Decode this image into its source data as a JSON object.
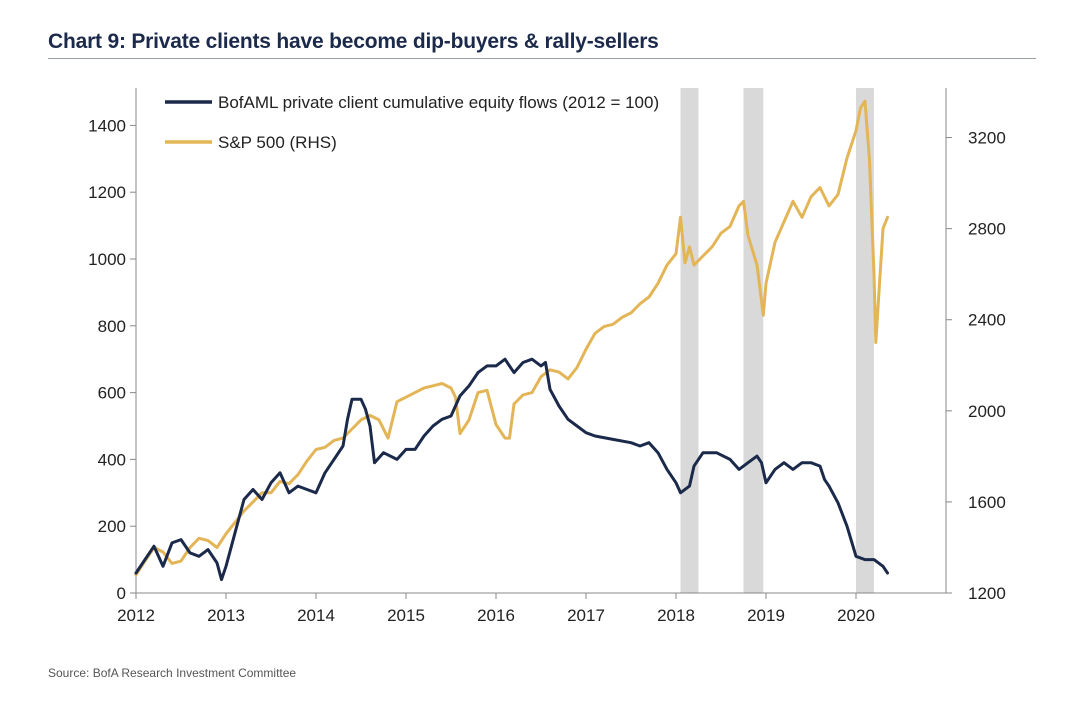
{
  "title": "Chart 9: Private clients have become dip-buyers & rally-sellers",
  "source": "Source: BofA Research Investment Committee",
  "colors": {
    "navy": "#1b2a4a",
    "gold": "#e3b557",
    "shade": "#d9d9d9",
    "axis": "#888888"
  },
  "chart_data": {
    "type": "line",
    "xlim": [
      2012,
      2021
    ],
    "x_ticks": [
      "2012",
      "2013",
      "2014",
      "2015",
      "2016",
      "2017",
      "2018",
      "2019",
      "2020"
    ],
    "y_left": {
      "lim": [
        0,
        1500
      ],
      "ticks": [
        "0",
        "200",
        "400",
        "600",
        "800",
        "1000",
        "1200",
        "1400"
      ]
    },
    "y_right": {
      "lim": [
        1200,
        3400
      ],
      "ticks": [
        "1200",
        "1600",
        "2000",
        "2400",
        "2800",
        "3200"
      ]
    },
    "shaded_periods": [
      [
        2018.05,
        2018.25
      ],
      [
        2018.75,
        2018.97
      ],
      [
        2020.0,
        2020.2
      ]
    ],
    "series": [
      {
        "name": "BofAML private client cumulative equity flows (2012 = 100)",
        "axis": "left",
        "color": "#1b2a4a",
        "points": [
          [
            2012.0,
            60
          ],
          [
            2012.1,
            100
          ],
          [
            2012.2,
            140
          ],
          [
            2012.3,
            80
          ],
          [
            2012.4,
            150
          ],
          [
            2012.5,
            160
          ],
          [
            2012.6,
            120
          ],
          [
            2012.7,
            110
          ],
          [
            2012.8,
            130
          ],
          [
            2012.9,
            90
          ],
          [
            2012.95,
            40
          ],
          [
            2013.0,
            80
          ],
          [
            2013.1,
            180
          ],
          [
            2013.2,
            280
          ],
          [
            2013.3,
            310
          ],
          [
            2013.4,
            280
          ],
          [
            2013.5,
            330
          ],
          [
            2013.6,
            360
          ],
          [
            2013.7,
            300
          ],
          [
            2013.8,
            320
          ],
          [
            2013.9,
            310
          ],
          [
            2014.0,
            300
          ],
          [
            2014.1,
            360
          ],
          [
            2014.2,
            400
          ],
          [
            2014.3,
            440
          ],
          [
            2014.35,
            520
          ],
          [
            2014.4,
            580
          ],
          [
            2014.5,
            580
          ],
          [
            2014.55,
            550
          ],
          [
            2014.6,
            500
          ],
          [
            2014.65,
            390
          ],
          [
            2014.75,
            420
          ],
          [
            2014.9,
            400
          ],
          [
            2015.0,
            430
          ],
          [
            2015.1,
            430
          ],
          [
            2015.2,
            470
          ],
          [
            2015.3,
            500
          ],
          [
            2015.4,
            520
          ],
          [
            2015.5,
            530
          ],
          [
            2015.6,
            590
          ],
          [
            2015.7,
            620
          ],
          [
            2015.8,
            660
          ],
          [
            2015.9,
            680
          ],
          [
            2016.0,
            680
          ],
          [
            2016.1,
            700
          ],
          [
            2016.2,
            660
          ],
          [
            2016.3,
            690
          ],
          [
            2016.4,
            700
          ],
          [
            2016.5,
            680
          ],
          [
            2016.55,
            690
          ],
          [
            2016.6,
            610
          ],
          [
            2016.7,
            560
          ],
          [
            2016.8,
            520
          ],
          [
            2016.9,
            500
          ],
          [
            2017.0,
            480
          ],
          [
            2017.1,
            470
          ],
          [
            2017.3,
            460
          ],
          [
            2017.5,
            450
          ],
          [
            2017.6,
            440
          ],
          [
            2017.7,
            450
          ],
          [
            2017.8,
            420
          ],
          [
            2017.9,
            370
          ],
          [
            2018.0,
            330
          ],
          [
            2018.05,
            300
          ],
          [
            2018.15,
            320
          ],
          [
            2018.2,
            380
          ],
          [
            2018.3,
            420
          ],
          [
            2018.45,
            420
          ],
          [
            2018.6,
            400
          ],
          [
            2018.7,
            370
          ],
          [
            2018.8,
            390
          ],
          [
            2018.9,
            410
          ],
          [
            2018.95,
            390
          ],
          [
            2019.0,
            330
          ],
          [
            2019.1,
            370
          ],
          [
            2019.2,
            390
          ],
          [
            2019.3,
            370
          ],
          [
            2019.4,
            390
          ],
          [
            2019.5,
            390
          ],
          [
            2019.6,
            380
          ],
          [
            2019.65,
            340
          ],
          [
            2019.7,
            320
          ],
          [
            2019.8,
            270
          ],
          [
            2019.9,
            200
          ],
          [
            2020.0,
            110
          ],
          [
            2020.1,
            100
          ],
          [
            2020.2,
            100
          ],
          [
            2020.3,
            80
          ],
          [
            2020.35,
            60
          ]
        ]
      },
      {
        "name": "S&P 500 (RHS)",
        "axis": "right",
        "color": "#e3b557",
        "points": [
          [
            2012.0,
            1280
          ],
          [
            2012.1,
            1340
          ],
          [
            2012.2,
            1400
          ],
          [
            2012.3,
            1380
          ],
          [
            2012.4,
            1330
          ],
          [
            2012.5,
            1340
          ],
          [
            2012.6,
            1400
          ],
          [
            2012.7,
            1440
          ],
          [
            2012.8,
            1430
          ],
          [
            2012.9,
            1400
          ],
          [
            2013.0,
            1460
          ],
          [
            2013.1,
            1510
          ],
          [
            2013.2,
            1560
          ],
          [
            2013.3,
            1600
          ],
          [
            2013.4,
            1640
          ],
          [
            2013.5,
            1640
          ],
          [
            2013.6,
            1690
          ],
          [
            2013.7,
            1680
          ],
          [
            2013.8,
            1720
          ],
          [
            2013.9,
            1780
          ],
          [
            2014.0,
            1830
          ],
          [
            2014.1,
            1840
          ],
          [
            2014.2,
            1870
          ],
          [
            2014.3,
            1880
          ],
          [
            2014.4,
            1920
          ],
          [
            2014.5,
            1960
          ],
          [
            2014.6,
            1980
          ],
          [
            2014.7,
            1960
          ],
          [
            2014.8,
            1880
          ],
          [
            2014.9,
            2040
          ],
          [
            2015.0,
            2060
          ],
          [
            2015.1,
            2080
          ],
          [
            2015.2,
            2100
          ],
          [
            2015.3,
            2110
          ],
          [
            2015.4,
            2120
          ],
          [
            2015.5,
            2100
          ],
          [
            2015.55,
            2060
          ],
          [
            2015.6,
            1900
          ],
          [
            2015.7,
            1960
          ],
          [
            2015.8,
            2080
          ],
          [
            2015.9,
            2090
          ],
          [
            2016.0,
            1940
          ],
          [
            2016.1,
            1880
          ],
          [
            2016.15,
            1880
          ],
          [
            2016.2,
            2030
          ],
          [
            2016.3,
            2070
          ],
          [
            2016.4,
            2080
          ],
          [
            2016.5,
            2150
          ],
          [
            2016.6,
            2180
          ],
          [
            2016.7,
            2170
          ],
          [
            2016.8,
            2140
          ],
          [
            2016.9,
            2190
          ],
          [
            2017.0,
            2270
          ],
          [
            2017.1,
            2340
          ],
          [
            2017.2,
            2370
          ],
          [
            2017.3,
            2380
          ],
          [
            2017.4,
            2410
          ],
          [
            2017.5,
            2430
          ],
          [
            2017.6,
            2470
          ],
          [
            2017.7,
            2500
          ],
          [
            2017.8,
            2560
          ],
          [
            2017.9,
            2640
          ],
          [
            2018.0,
            2690
          ],
          [
            2018.05,
            2850
          ],
          [
            2018.1,
            2650
          ],
          [
            2018.15,
            2720
          ],
          [
            2018.2,
            2640
          ],
          [
            2018.3,
            2680
          ],
          [
            2018.4,
            2720
          ],
          [
            2018.5,
            2780
          ],
          [
            2018.6,
            2810
          ],
          [
            2018.7,
            2900
          ],
          [
            2018.75,
            2920
          ],
          [
            2018.8,
            2770
          ],
          [
            2018.9,
            2640
          ],
          [
            2018.97,
            2420
          ],
          [
            2019.0,
            2560
          ],
          [
            2019.1,
            2740
          ],
          [
            2019.2,
            2830
          ],
          [
            2019.3,
            2920
          ],
          [
            2019.4,
            2850
          ],
          [
            2019.5,
            2940
          ],
          [
            2019.6,
            2980
          ],
          [
            2019.7,
            2900
          ],
          [
            2019.8,
            2950
          ],
          [
            2019.9,
            3110
          ],
          [
            2020.0,
            3230
          ],
          [
            2020.05,
            3330
          ],
          [
            2020.1,
            3360
          ],
          [
            2020.15,
            3100
          ],
          [
            2020.2,
            2600
          ],
          [
            2020.22,
            2300
          ],
          [
            2020.3,
            2800
          ],
          [
            2020.35,
            2850
          ]
        ]
      }
    ]
  }
}
